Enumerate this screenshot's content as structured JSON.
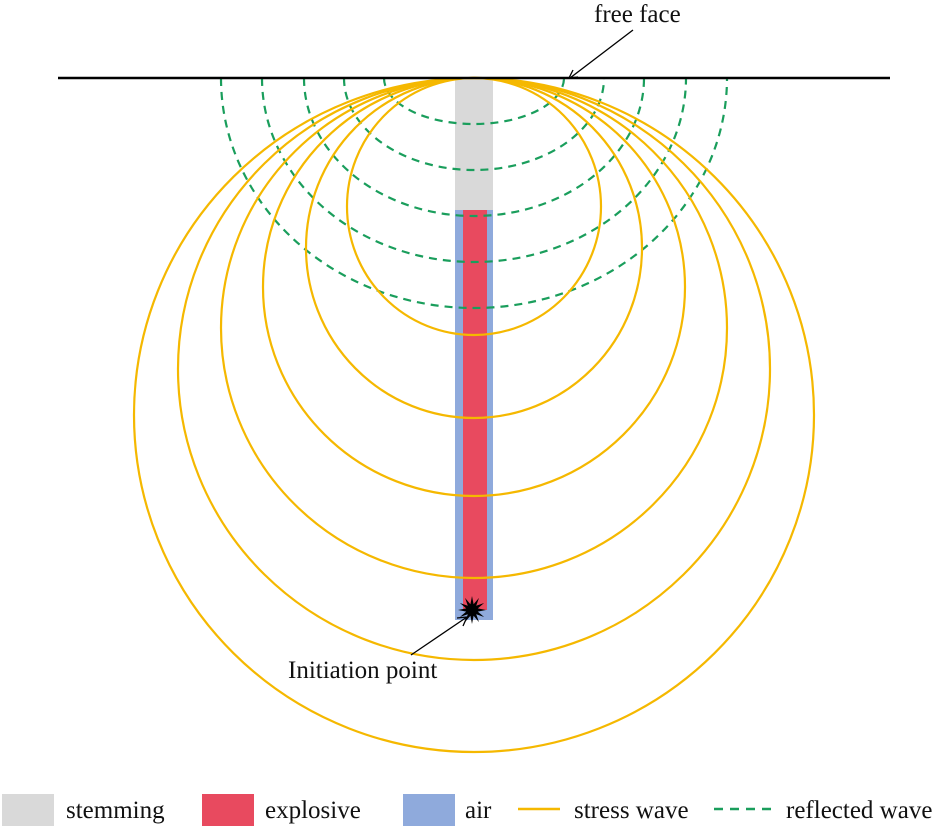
{
  "diagram": {
    "labels": {
      "free_face": "free face",
      "initiation_point": "Initiation point"
    },
    "legend": {
      "stemming": "stemming",
      "explosive": "explosive",
      "air": "air",
      "stress_wave": "stress wave",
      "reflected_wave": "reflected wave"
    },
    "colors": {
      "stemming": "#d9d9d9",
      "explosive": "#e84a5f",
      "air": "#8faadc",
      "stress_wave": "#f5b800",
      "reflected_wave": "#1a9e5c",
      "line": "#000000"
    }
  }
}
